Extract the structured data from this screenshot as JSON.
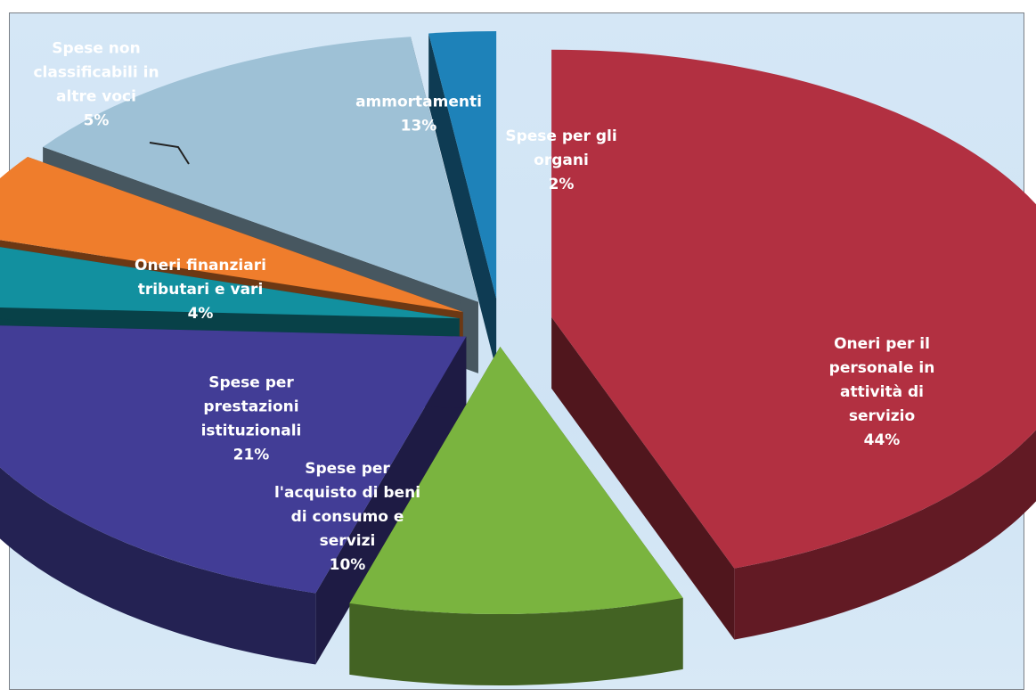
{
  "chart_data": {
    "type": "pie",
    "style": "3d-exploded",
    "slices": [
      {
        "label": "Oneri per il personale in attività di servizio",
        "value": 44,
        "percent": "44%",
        "color": "#b23041",
        "label_color": "#ffffff",
        "label_lines": [
          "Oneri per il",
          "personale in",
          "attività di",
          "servizio",
          "44%"
        ]
      },
      {
        "label": "Spese per l'acquisto di beni di consumo e servizi",
        "value": 10,
        "percent": "10%",
        "color": "#7ab43f",
        "label_color": "#ffffff",
        "label_lines": [
          "Spese per",
          "l'acquisto di beni",
          "di consumo e",
          "servizi",
          "10%"
        ]
      },
      {
        "label": "Spese per prestazioni istituzionali",
        "value": 21,
        "percent": "21%",
        "color": "#423d96",
        "label_color": "#ffffff",
        "label_lines": [
          "Spese per",
          "prestazioni",
          "istituzionali",
          "21%"
        ]
      },
      {
        "label": "Oneri finanziari tributari e vari",
        "value": 4,
        "percent": "4%",
        "color": "#12909f",
        "label_color": "#ffffff",
        "label_lines": [
          "Oneri finanziari",
          "tributari e vari",
          "4%"
        ]
      },
      {
        "label": "Spese non classificabili in altre voci",
        "value": 5,
        "percent": "5%",
        "color": "#ef7d2c",
        "label_color": "#ffffff",
        "label_lines": [
          "Spese non",
          "classificabili in",
          "altre voci",
          "5%"
        ]
      },
      {
        "label": "ammortamenti",
        "value": 13,
        "percent": "13%",
        "color": "#9ec1d6",
        "label_color": "#ffffff",
        "label_lines": [
          "ammortamenti",
          "13%"
        ]
      },
      {
        "label": "Spese per gli organi",
        "value": 2,
        "percent": "2%",
        "color": "#1e82b9",
        "label_color": "#ffffff",
        "label_lines": [
          "Spese per gli",
          "organi",
          "2%"
        ]
      }
    ]
  }
}
